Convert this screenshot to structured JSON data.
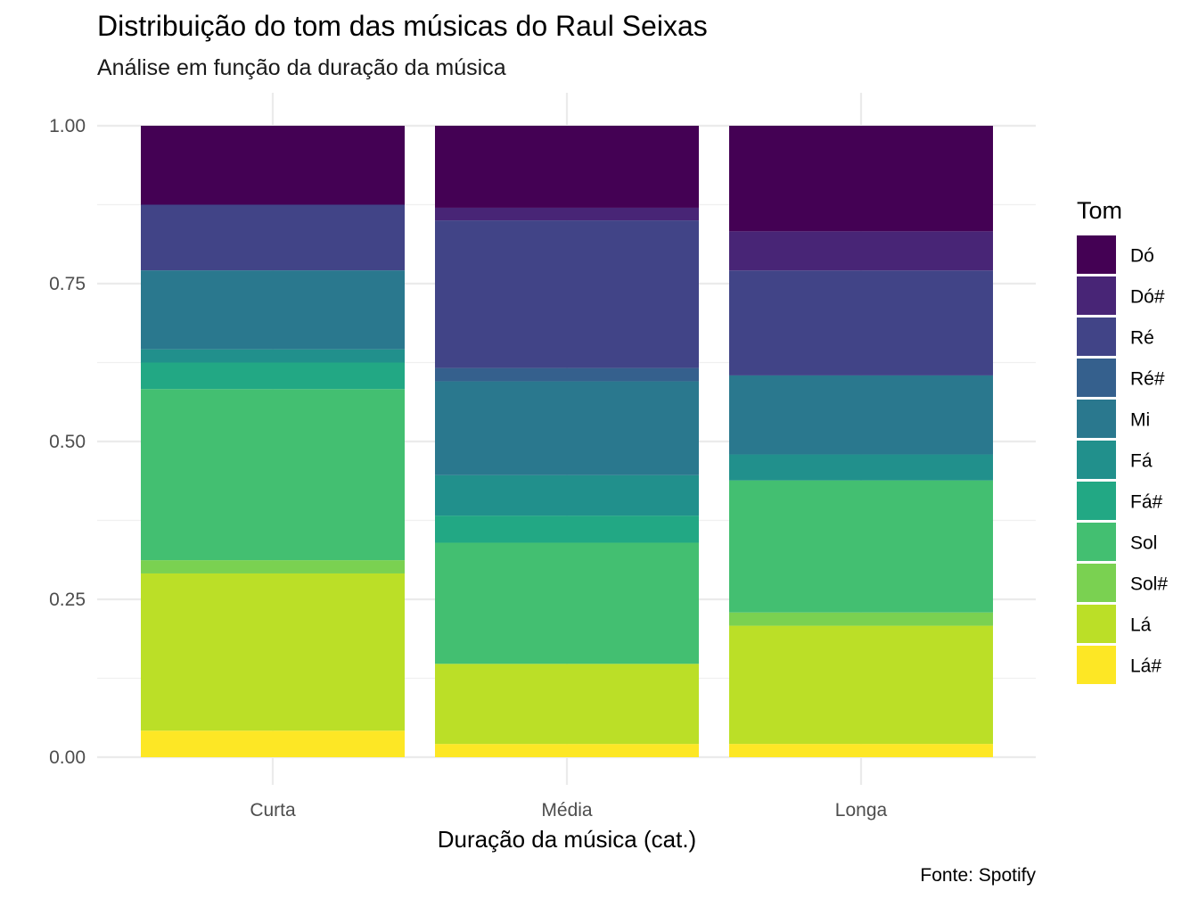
{
  "chart_data": {
    "type": "bar",
    "stacked": true,
    "position": "fill",
    "title": "Distribuição do tom das músicas do Raul Seixas",
    "subtitle": "Análise em função da duração da música",
    "xlabel": "Duração da música (cat.)",
    "ylabel": "",
    "caption": "Fonte: Spotify",
    "ylim": [
      0,
      1
    ],
    "yticks": [
      "0.00",
      "0.25",
      "0.50",
      "0.75",
      "1.00"
    ],
    "categories": [
      "Curta",
      "Média",
      "Longa"
    ],
    "legend_title": "Tom",
    "legend_position": "right",
    "grid": true,
    "series": [
      {
        "name": "Dó",
        "color": "#440154",
        "values": [
          0.125,
          0.13,
          0.167
        ]
      },
      {
        "name": "Dó#",
        "color": "#482576",
        "values": [
          0.0,
          0.02,
          0.062
        ]
      },
      {
        "name": "Ré",
        "color": "#414487",
        "values": [
          0.104,
          0.234,
          0.166
        ]
      },
      {
        "name": "Ré#",
        "color": "#35608D",
        "values": [
          0.0,
          0.021,
          0.0
        ]
      },
      {
        "name": "Mi",
        "color": "#2A788E",
        "values": [
          0.125,
          0.149,
          0.125
        ]
      },
      {
        "name": "Fá",
        "color": "#21908C",
        "values": [
          0.021,
          0.064,
          0.041
        ]
      },
      {
        "name": "Fá#",
        "color": "#22A884",
        "values": [
          0.042,
          0.043,
          0.0
        ]
      },
      {
        "name": "Sol",
        "color": "#43BF71",
        "values": [
          0.271,
          0.192,
          0.209
        ]
      },
      {
        "name": "Sol#",
        "color": "#7AD151",
        "values": [
          0.021,
          0.0,
          0.021
        ]
      },
      {
        "name": "Lá",
        "color": "#BBDF27",
        "values": [
          0.249,
          0.127,
          0.187
        ]
      },
      {
        "name": "Lá#",
        "color": "#FDE725",
        "values": [
          0.042,
          0.021,
          0.021
        ]
      }
    ]
  }
}
